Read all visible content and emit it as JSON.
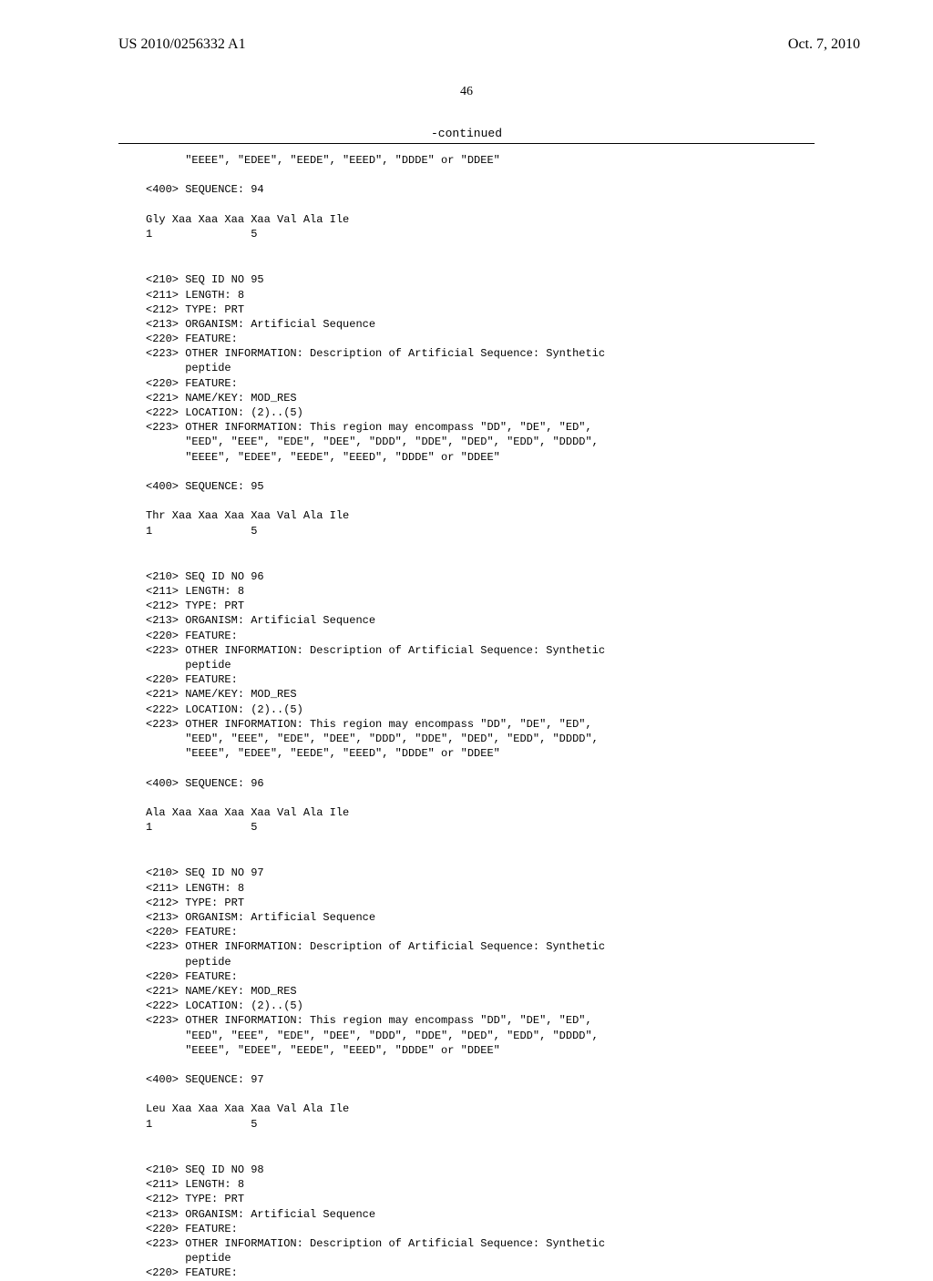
{
  "header": {
    "left": "US 2010/0256332 A1",
    "right": "Oct. 7, 2010"
  },
  "page_number": "46",
  "continued_label": "-continued",
  "blocks": [
    {
      "lines": [
        "      \"EEEE\", \"EDEE\", \"EEDE\", \"EEED\", \"DDDE\" or \"DDEE\"",
        "",
        "<400> SEQUENCE: 94",
        "",
        "Gly Xaa Xaa Xaa Xaa Val Ala Ile",
        "1               5"
      ]
    },
    {
      "lines": [
        "<210> SEQ ID NO 95",
        "<211> LENGTH: 8",
        "<212> TYPE: PRT",
        "<213> ORGANISM: Artificial Sequence",
        "<220> FEATURE:",
        "<223> OTHER INFORMATION: Description of Artificial Sequence: Synthetic",
        "      peptide",
        "<220> FEATURE:",
        "<221> NAME/KEY: MOD_RES",
        "<222> LOCATION: (2)..(5)",
        "<223> OTHER INFORMATION: This region may encompass \"DD\", \"DE\", \"ED\",",
        "      \"EED\", \"EEE\", \"EDE\", \"DEE\", \"DDD\", \"DDE\", \"DED\", \"EDD\", \"DDDD\",",
        "      \"EEEE\", \"EDEE\", \"EEDE\", \"EEED\", \"DDDE\" or \"DDEE\"",
        "",
        "<400> SEQUENCE: 95",
        "",
        "Thr Xaa Xaa Xaa Xaa Val Ala Ile",
        "1               5"
      ]
    },
    {
      "lines": [
        "<210> SEQ ID NO 96",
        "<211> LENGTH: 8",
        "<212> TYPE: PRT",
        "<213> ORGANISM: Artificial Sequence",
        "<220> FEATURE:",
        "<223> OTHER INFORMATION: Description of Artificial Sequence: Synthetic",
        "      peptide",
        "<220> FEATURE:",
        "<221> NAME/KEY: MOD_RES",
        "<222> LOCATION: (2)..(5)",
        "<223> OTHER INFORMATION: This region may encompass \"DD\", \"DE\", \"ED\",",
        "      \"EED\", \"EEE\", \"EDE\", \"DEE\", \"DDD\", \"DDE\", \"DED\", \"EDD\", \"DDDD\",",
        "      \"EEEE\", \"EDEE\", \"EEDE\", \"EEED\", \"DDDE\" or \"DDEE\"",
        "",
        "<400> SEQUENCE: 96",
        "",
        "Ala Xaa Xaa Xaa Xaa Val Ala Ile",
        "1               5"
      ]
    },
    {
      "lines": [
        "<210> SEQ ID NO 97",
        "<211> LENGTH: 8",
        "<212> TYPE: PRT",
        "<213> ORGANISM: Artificial Sequence",
        "<220> FEATURE:",
        "<223> OTHER INFORMATION: Description of Artificial Sequence: Synthetic",
        "      peptide",
        "<220> FEATURE:",
        "<221> NAME/KEY: MOD_RES",
        "<222> LOCATION: (2)..(5)",
        "<223> OTHER INFORMATION: This region may encompass \"DD\", \"DE\", \"ED\",",
        "      \"EED\", \"EEE\", \"EDE\", \"DEE\", \"DDD\", \"DDE\", \"DED\", \"EDD\", \"DDDD\",",
        "      \"EEEE\", \"EDEE\", \"EEDE\", \"EEED\", \"DDDE\" or \"DDEE\"",
        "",
        "<400> SEQUENCE: 97",
        "",
        "Leu Xaa Xaa Xaa Xaa Val Ala Ile",
        "1               5"
      ]
    },
    {
      "lines": [
        "<210> SEQ ID NO 98",
        "<211> LENGTH: 8",
        "<212> TYPE: PRT",
        "<213> ORGANISM: Artificial Sequence",
        "<220> FEATURE:",
        "<223> OTHER INFORMATION: Description of Artificial Sequence: Synthetic",
        "      peptide",
        "<220> FEATURE:"
      ]
    }
  ]
}
